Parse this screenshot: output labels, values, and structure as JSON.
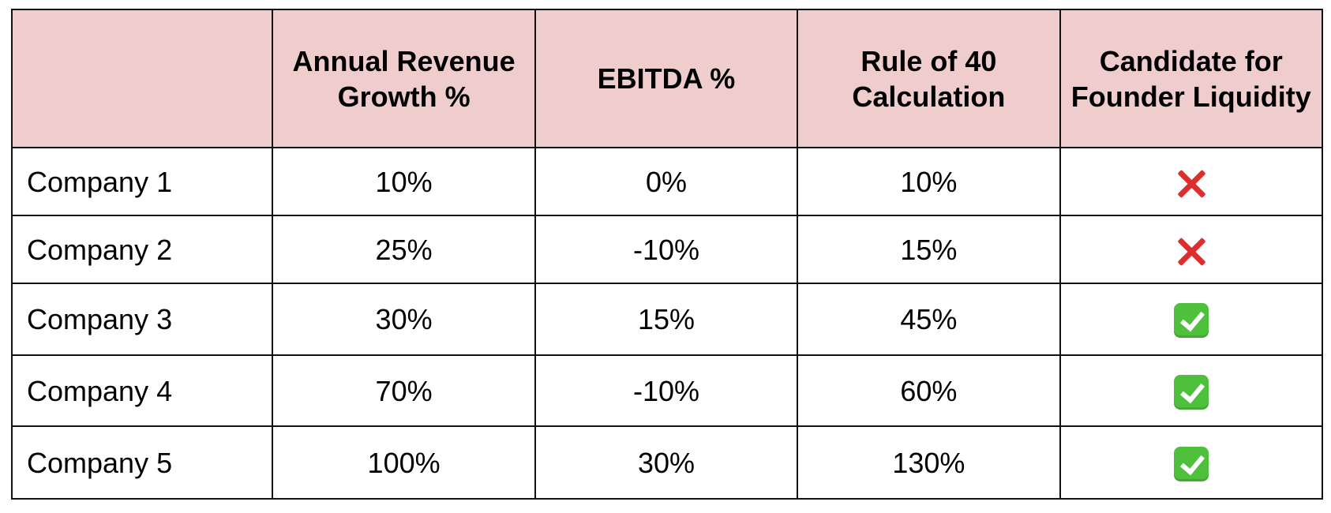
{
  "table": {
    "headers": [
      "",
      "Annual Revenue Growth %",
      "EBITDA %",
      "Rule of 40 Calculation",
      "Candidate for Founder Liquidity"
    ],
    "header_color": "#efcdcd",
    "rows": [
      {
        "company": "Company 1",
        "revenue_growth": "10%",
        "ebitda": "0%",
        "rule_of_40": "10%",
        "candidate": "cross-mark-icon"
      },
      {
        "company": "Company 2",
        "revenue_growth": "25%",
        "ebitda": "-10%",
        "rule_of_40": "15%",
        "candidate": "cross-mark-icon"
      },
      {
        "company": "Company 3",
        "revenue_growth": "30%",
        "ebitda": "15%",
        "rule_of_40": "45%",
        "candidate": "check-mark-icon"
      },
      {
        "company": "Company 4",
        "revenue_growth": "70%",
        "ebitda": "-10%",
        "rule_of_40": "60%",
        "candidate": "check-mark-icon"
      },
      {
        "company": "Company 5",
        "revenue_growth": "100%",
        "ebitda": "30%",
        "rule_of_40": "130%",
        "candidate": "check-mark-icon"
      }
    ],
    "colors": {
      "cross": "#dd2e2e",
      "check": "#4fc03c"
    }
  }
}
